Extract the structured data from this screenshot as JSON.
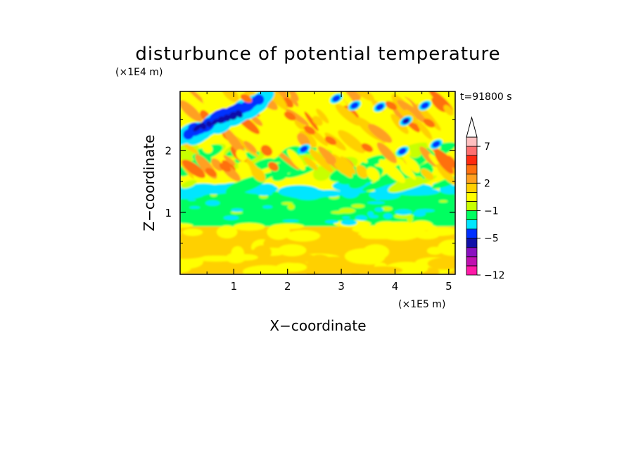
{
  "chart_data": {
    "type": "heatmap",
    "title": "disturbunce of potential temperature",
    "time_label": "t=91800 s",
    "xlabel": "X−coordinate",
    "ylabel": "Z−coordinate",
    "x_unit": "(×1E5 m)",
    "y_unit": "(×1E4 m)",
    "xlim": [
      0,
      5.12
    ],
    "ylim": [
      0,
      2.95
    ],
    "x_ticks": [
      "1",
      "2",
      "3",
      "4",
      "5"
    ],
    "y_ticks": [
      "1",
      "2"
    ],
    "colorbar": {
      "levels": [
        -12,
        -11,
        -9,
        -7,
        -5,
        -3,
        -2,
        -1,
        0,
        1,
        2,
        3,
        4,
        5,
        7,
        9,
        11
      ],
      "tick_labels": [
        "−12",
        "−5",
        "−1",
        "2",
        "7"
      ],
      "colors": [
        "#ff1aa8",
        "#c010b0",
        "#8a10c0",
        "#1010a8",
        "#0030ff",
        "#00e6ff",
        "#00ff60",
        "#c8ff00",
        "#ffff00",
        "#ffd000",
        "#ffa020",
        "#ff7010",
        "#ff2a10",
        "#ff7070",
        "#ffc0c0"
      ],
      "extend": "max"
    },
    "layers": [
      {
        "z_range": [
          0.0,
          0.35
        ],
        "dominant": "light orange / yellow",
        "value_range": [
          0,
          2
        ]
      },
      {
        "z_range": [
          0.35,
          0.8
        ],
        "dominant": "yellow / light orange",
        "value_range": [
          0,
          1
        ]
      },
      {
        "z_range": [
          0.8,
          1.25
        ],
        "dominant": "green",
        "value_range": [
          -1,
          0
        ]
      },
      {
        "z_range": [
          1.25,
          1.5
        ],
        "dominant": "cyan / green",
        "value_range": [
          -2,
          0
        ]
      },
      {
        "z_range": [
          1.5,
          2.95
        ],
        "dominant": "yellow / orange / red with blue cells",
        "value_range": [
          -7,
          5
        ]
      }
    ]
  }
}
